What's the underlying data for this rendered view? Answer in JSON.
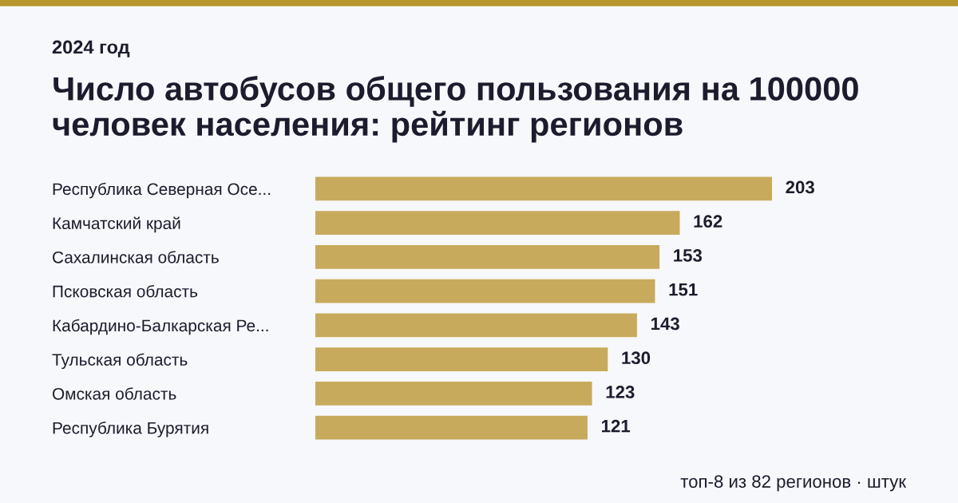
{
  "chart_data": {
    "type": "bar",
    "orientation": "horizontal",
    "subtitle": "2024 год",
    "title": "Число автобусов общего пользования на 100000 человек населения: рейтинг регионов",
    "categories": [
      "Республика Северная Осе...",
      "Камчатский край",
      "Сахалинская область",
      "Псковская область",
      "Кабардино-Балкарская Ре...",
      "Тульская область",
      "Омская область",
      "Республика Бурятия"
    ],
    "values": [
      203,
      162,
      153,
      151,
      143,
      130,
      123,
      121
    ],
    "color": "#c8aa5c",
    "data_labels": true,
    "annotations": [
      "топ-8 из 82 регионов · штук"
    ]
  }
}
